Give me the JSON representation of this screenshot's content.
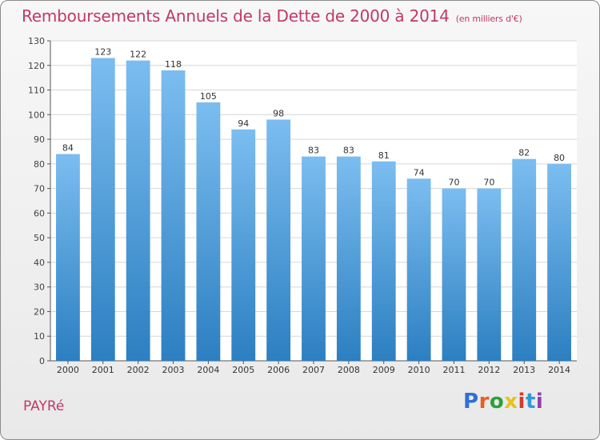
{
  "header": {
    "title": "Remboursements Annuels de la Dette de 2000 à 2014",
    "unit": "(en milliers d'€)"
  },
  "footer": {
    "place": "PAYRé",
    "brand": "Proxiti",
    "brand_colors": [
      "#2f6fd6",
      "#e8601c",
      "#2e9f3e",
      "#e7c21a",
      "#d23b2e",
      "#2f9ad6",
      "#8e3fb0"
    ]
  },
  "colors": {
    "bar_top": "#7bbdf0",
    "bar_bottom": "#2c7fc1",
    "grid": "#d6d6d6"
  },
  "chart_data": {
    "type": "bar",
    "title": "Remboursements Annuels de la Dette de 2000 à 2014",
    "subtitle": "(en milliers d'€)",
    "xlabel": "",
    "ylabel": "",
    "categories": [
      "2000",
      "2001",
      "2002",
      "2003",
      "2004",
      "2005",
      "2006",
      "2007",
      "2008",
      "2009",
      "2010",
      "2011",
      "2012",
      "2013",
      "2014"
    ],
    "values": [
      84,
      123,
      122,
      118,
      105,
      94,
      98,
      83,
      83,
      81,
      74,
      70,
      70,
      82,
      80
    ],
    "ylim": [
      0,
      130
    ],
    "yticks": [
      0,
      10,
      20,
      30,
      40,
      50,
      60,
      70,
      80,
      90,
      100,
      110,
      120,
      130
    ],
    "grid": true,
    "legend": "none"
  }
}
